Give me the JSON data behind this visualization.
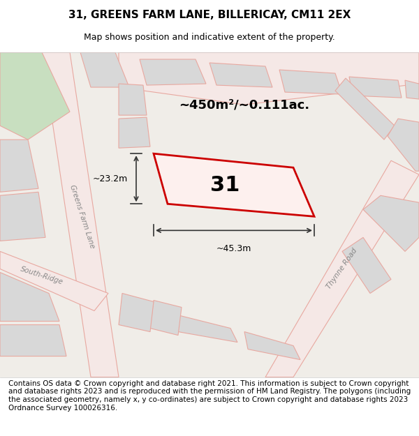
{
  "title": "31, GREENS FARM LANE, BILLERICAY, CM11 2EX",
  "subtitle": "Map shows position and indicative extent of the property.",
  "area_text": "~450m²/~0.111ac.",
  "width_text": "~45.3m",
  "height_text": "~23.2m",
  "number_text": "31",
  "footer_text": "Contains OS data © Crown copyright and database right 2021. This information is subject to Crown copyright and database rights 2023 and is reproduced with the permission of HM Land Registry. The polygons (including the associated geometry, namely x, y co-ordinates) are subject to Crown copyright and database rights 2023 Ordnance Survey 100026316.",
  "bg_color": "#f5f5f5",
  "map_bg": "#f0ede8",
  "road_color": "#e8a8a0",
  "road_fill": "#f5e8e6",
  "plot_fill": "#f5f5f5",
  "building_fill": "#d8d8d8",
  "highlight_fill": "#f5e8e6",
  "red_border": "#cc0000",
  "green_area": "#c8e0c0",
  "dim_line_color": "#333333",
  "title_fontsize": 11,
  "subtitle_fontsize": 9,
  "footer_fontsize": 7.5,
  "map_xlim": [
    0,
    1
  ],
  "map_ylim": [
    0,
    1
  ]
}
